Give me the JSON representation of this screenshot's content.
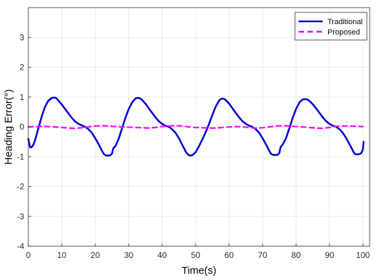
{
  "chart_data": {
    "type": "line",
    "xlabel": "Time(s)",
    "ylabel": "Heading Error(°)",
    "xlim": [
      0,
      102
    ],
    "ylim": [
      -4,
      4
    ],
    "xticks": [
      0,
      10,
      20,
      30,
      40,
      50,
      60,
      70,
      80,
      90,
      100
    ],
    "yticks": [
      -4,
      -3,
      -2,
      -1,
      0,
      1,
      2,
      3
    ],
    "grid": true,
    "legend_position": "top-right",
    "series": [
      {
        "name": "Traditional",
        "color": "#0000d6",
        "style": "solid",
        "x": [
          0,
          0.5,
          1,
          1.5,
          2,
          2.5,
          3,
          4,
          5,
          6,
          7,
          7.5,
          8,
          8.5,
          9,
          10,
          11,
          12,
          13,
          14,
          15,
          16,
          17,
          18,
          19,
          20,
          21,
          22,
          22.5,
          23,
          23.5,
          24,
          24.5,
          25,
          25.3,
          25.6,
          26,
          27,
          28,
          29,
          30,
          31,
          32,
          32.5,
          33,
          33.5,
          34,
          35,
          36,
          37,
          38,
          39,
          40,
          41,
          42,
          43,
          44,
          45,
          46,
          47,
          47.5,
          48,
          48.5,
          49,
          50,
          51,
          52,
          53,
          54,
          55,
          56,
          57,
          57.5,
          58,
          58.5,
          59,
          60,
          61,
          62,
          63,
          64,
          65,
          66,
          67,
          68,
          69,
          70,
          71,
          72,
          72.5,
          73,
          73.5,
          74,
          74.5,
          75,
          75.3,
          75.6,
          76,
          77,
          78,
          79,
          80,
          81,
          82,
          82.5,
          83,
          83.5,
          84,
          85,
          86,
          87,
          88,
          89,
          90,
          91,
          92,
          93,
          94,
          95,
          96,
          97,
          97.5,
          98,
          98.5,
          99,
          99.5,
          100,
          100.2
        ],
        "values": [
          -0.4,
          -0.68,
          -0.68,
          -0.6,
          -0.45,
          -0.25,
          -0.05,
          0.35,
          0.68,
          0.88,
          0.97,
          0.98,
          0.98,
          0.95,
          0.88,
          0.75,
          0.6,
          0.45,
          0.3,
          0.18,
          0.1,
          0.05,
          0.0,
          -0.08,
          -0.2,
          -0.38,
          -0.58,
          -0.8,
          -0.9,
          -0.95,
          -0.96,
          -0.96,
          -0.95,
          -0.9,
          -0.75,
          -0.68,
          -0.65,
          -0.4,
          -0.05,
          0.3,
          0.6,
          0.82,
          0.95,
          0.97,
          0.97,
          0.95,
          0.9,
          0.78,
          0.62,
          0.47,
          0.32,
          0.19,
          0.1,
          0.04,
          0.0,
          -0.08,
          -0.2,
          -0.38,
          -0.6,
          -0.82,
          -0.9,
          -0.95,
          -0.96,
          -0.95,
          -0.85,
          -0.65,
          -0.42,
          -0.18,
          0.1,
          0.4,
          0.68,
          0.88,
          0.93,
          0.95,
          0.94,
          0.9,
          0.78,
          0.62,
          0.47,
          0.32,
          0.19,
          0.1,
          0.04,
          0.0,
          -0.08,
          -0.2,
          -0.38,
          -0.58,
          -0.8,
          -0.9,
          -0.93,
          -0.94,
          -0.94,
          -0.93,
          -0.88,
          -0.72,
          -0.64,
          -0.6,
          -0.38,
          -0.05,
          0.3,
          0.6,
          0.82,
          0.92,
          0.93,
          0.93,
          0.91,
          0.87,
          0.76,
          0.62,
          0.47,
          0.32,
          0.19,
          0.1,
          0.04,
          0.0,
          -0.08,
          -0.2,
          -0.38,
          -0.58,
          -0.8,
          -0.9,
          -0.92,
          -0.92,
          -0.91,
          -0.88,
          -0.75,
          -0.5
        ]
      },
      {
        "name": "Proposed",
        "color": "#ff00ff",
        "style": "dashed",
        "x": [
          0,
          2,
          4,
          6,
          8,
          10,
          12,
          14,
          16,
          18,
          20,
          22,
          24,
          26,
          28,
          30,
          32,
          34,
          36,
          38,
          40,
          42,
          44,
          46,
          48,
          50,
          52,
          54,
          56,
          58,
          60,
          62,
          64,
          66,
          68,
          70,
          72,
          74,
          76,
          78,
          80,
          82,
          84,
          86,
          88,
          90,
          92,
          94,
          96,
          98,
          100
        ],
        "values": [
          0.0,
          0.01,
          0.02,
          0.01,
          0.0,
          -0.02,
          -0.04,
          -0.05,
          -0.03,
          0.0,
          0.03,
          0.04,
          0.03,
          0.01,
          0.0,
          -0.01,
          -0.02,
          -0.03,
          -0.04,
          -0.02,
          0.01,
          0.03,
          0.04,
          0.03,
          0.0,
          -0.02,
          -0.03,
          -0.04,
          -0.04,
          -0.02,
          0.0,
          0.01,
          0.0,
          -0.02,
          -0.04,
          -0.03,
          0.0,
          0.03,
          0.04,
          0.03,
          0.01,
          0.0,
          -0.02,
          -0.04,
          -0.05,
          -0.02,
          0.02,
          0.03,
          0.03,
          0.02,
          0.01
        ]
      }
    ]
  }
}
